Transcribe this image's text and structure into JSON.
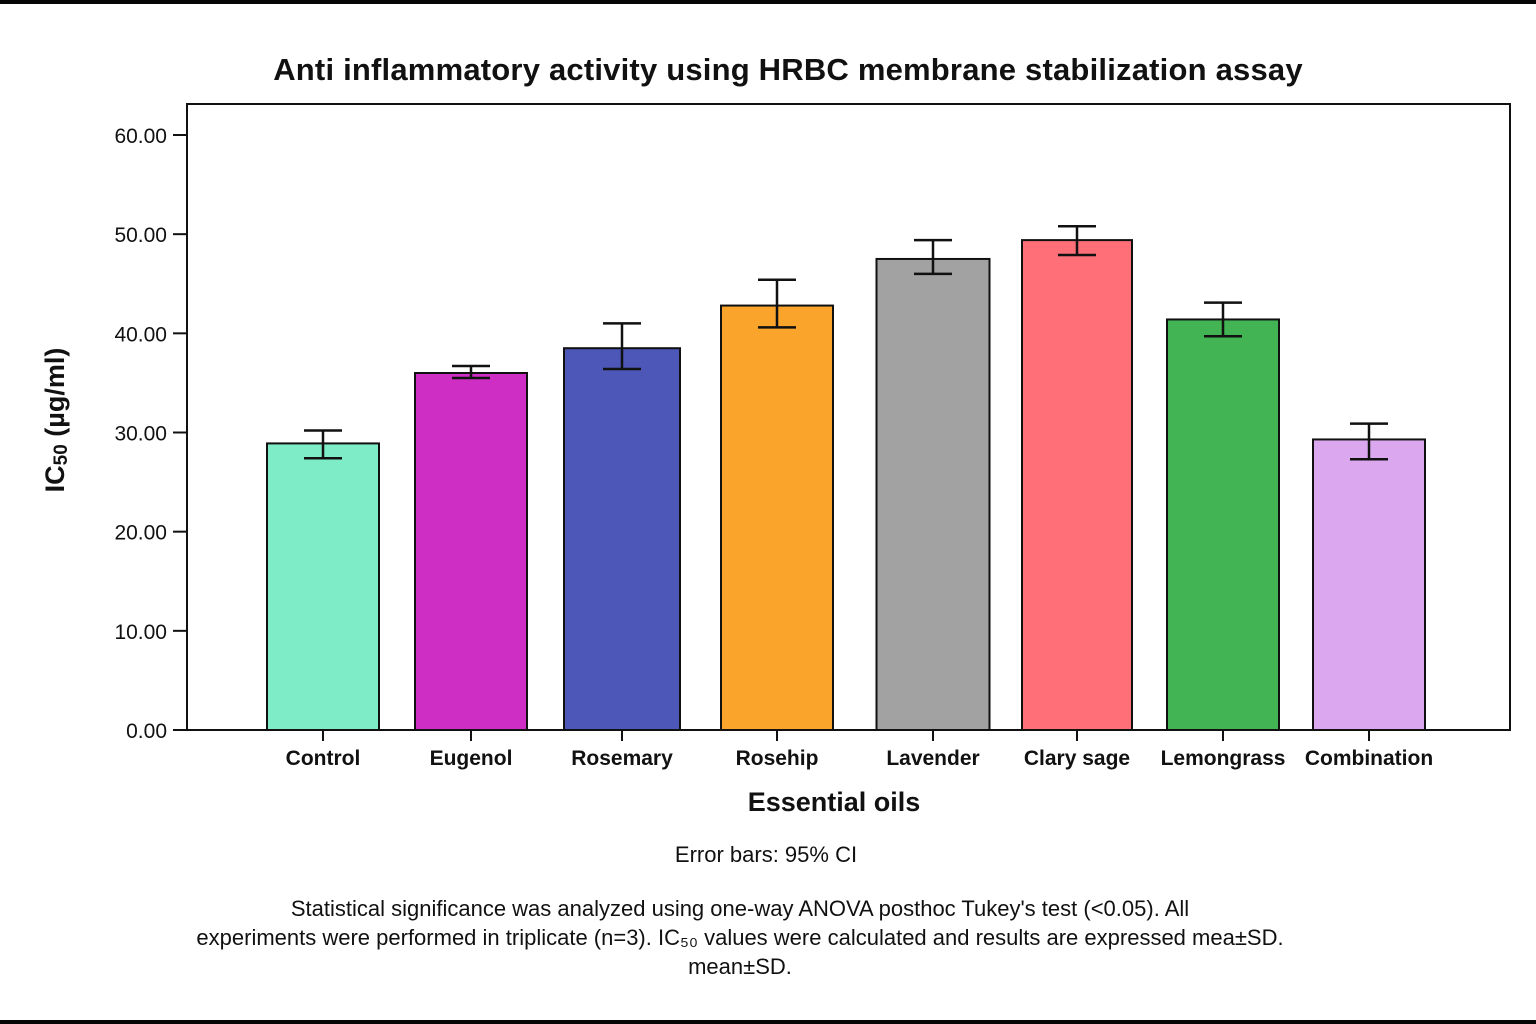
{
  "chart_data": {
    "type": "bar",
    "title": "Anti inflammatory activity using HRBC membrane stabilization assay",
    "xlabel": "Essential oils",
    "ylabel": "IC50 (µg/ml)",
    "ylabel_main": "IC",
    "ylabel_sub": "50",
    "ylabel_unit": " (µg/ml)",
    "ylim": [
      0,
      60
    ],
    "yticks": [
      0,
      10,
      20,
      30,
      40,
      50,
      60
    ],
    "ytick_labels": [
      "0.00",
      "10.00",
      "20.00",
      "30.00",
      "40.00",
      "50.00",
      "60.00"
    ],
    "grid": false,
    "legend": "none",
    "categories": [
      "Control",
      "Eugenol",
      "Rosemary",
      "Rosehip",
      "Lavender",
      "Clary sage",
      "Lemongrass",
      "Combination"
    ],
    "values": [
      28.9,
      36.0,
      38.5,
      42.8,
      47.5,
      49.4,
      41.4,
      29.3
    ],
    "error_upper": [
      30.2,
      36.7,
      41.0,
      45.4,
      49.4,
      50.8,
      43.1,
      30.9
    ],
    "error_lower": [
      27.4,
      35.5,
      36.4,
      40.6,
      46.0,
      47.9,
      39.7,
      27.3
    ],
    "colors": [
      "#7eecc6",
      "#cf2ec4",
      "#4c57b8",
      "#fba42c",
      "#a2a2a2",
      "#fe6f78",
      "#42b454",
      "#dba8ef"
    ],
    "error_bar_note": "Error bars: 95% CI",
    "footnote_lines": [
      "Statistical significance was analyzed using one-way ANOVA posthoc Tukey's test (<0.05). All",
      "experiments were performed in triplicate (n=3). IC₅₀ values were calculated and results are expressed mea±SD.",
      "mean±SD."
    ]
  }
}
